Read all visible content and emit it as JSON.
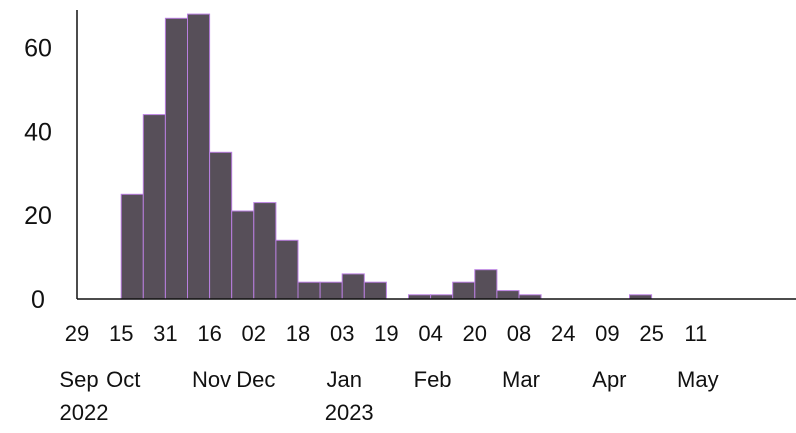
{
  "chart_data": {
    "type": "bar",
    "title": "",
    "xlabel": "",
    "ylabel": "",
    "ylim": [
      0,
      70
    ],
    "y_ticks": [
      "0",
      "20",
      "40",
      "60"
    ],
    "x_ticks": [
      {
        "date": "2022-09-29",
        "day": "29",
        "month": "Sep",
        "year": "2022"
      },
      {
        "date": "2022-10-15",
        "day": "15",
        "month": "Oct",
        "year": ""
      },
      {
        "date": "2022-10-31",
        "day": "31",
        "month": "",
        "year": ""
      },
      {
        "date": "2022-11-16",
        "day": "16",
        "month": "Nov",
        "year": ""
      },
      {
        "date": "2022-12-02",
        "day": "02",
        "month": "Dec",
        "year": ""
      },
      {
        "date": "2022-12-18",
        "day": "18",
        "month": "",
        "year": ""
      },
      {
        "date": "2023-01-03",
        "day": "03",
        "month": "Jan",
        "year": "2023"
      },
      {
        "date": "2023-01-19",
        "day": "19",
        "month": "",
        "year": ""
      },
      {
        "date": "2023-02-04",
        "day": "04",
        "month": "Feb",
        "year": ""
      },
      {
        "date": "2023-02-20",
        "day": "20",
        "month": "",
        "year": ""
      },
      {
        "date": "2023-03-08",
        "day": "08",
        "month": "Mar",
        "year": ""
      },
      {
        "date": "2023-03-24",
        "day": "24",
        "month": "",
        "year": ""
      },
      {
        "date": "2023-04-09",
        "day": "09",
        "month": "Apr",
        "year": ""
      },
      {
        "date": "2023-04-25",
        "day": "25",
        "month": "",
        "year": ""
      },
      {
        "date": "2023-05-11",
        "day": "11",
        "month": "May",
        "year": ""
      }
    ],
    "bin_days": 8,
    "bins": [
      {
        "start": "2022-10-15",
        "value": 25
      },
      {
        "start": "2022-10-23",
        "value": 44
      },
      {
        "start": "2022-10-31",
        "value": 67
      },
      {
        "start": "2022-11-08",
        "value": 68
      },
      {
        "start": "2022-11-16",
        "value": 35
      },
      {
        "start": "2022-11-24",
        "value": 21
      },
      {
        "start": "2022-12-02",
        "value": 23
      },
      {
        "start": "2022-12-10",
        "value": 14
      },
      {
        "start": "2022-12-18",
        "value": 4
      },
      {
        "start": "2022-12-26",
        "value": 4
      },
      {
        "start": "2023-01-03",
        "value": 6
      },
      {
        "start": "2023-01-11",
        "value": 4
      },
      {
        "start": "2023-01-19",
        "value": 0
      },
      {
        "start": "2023-01-27",
        "value": 1
      },
      {
        "start": "2023-02-04",
        "value": 1
      },
      {
        "start": "2023-02-12",
        "value": 4
      },
      {
        "start": "2023-02-20",
        "value": 7
      },
      {
        "start": "2023-02-28",
        "value": 2
      },
      {
        "start": "2023-03-08",
        "value": 1
      },
      {
        "start": "2023-03-16",
        "value": 0
      },
      {
        "start": "2023-03-24",
        "value": 0
      },
      {
        "start": "2023-04-01",
        "value": 0
      },
      {
        "start": "2023-04-09",
        "value": 0
      },
      {
        "start": "2023-04-17",
        "value": 1
      }
    ],
    "colors": {
      "bar_fill": "#574f59",
      "bar_outline": "#b97fe0",
      "axis": "#111111"
    },
    "grid": false,
    "legend": "none"
  }
}
